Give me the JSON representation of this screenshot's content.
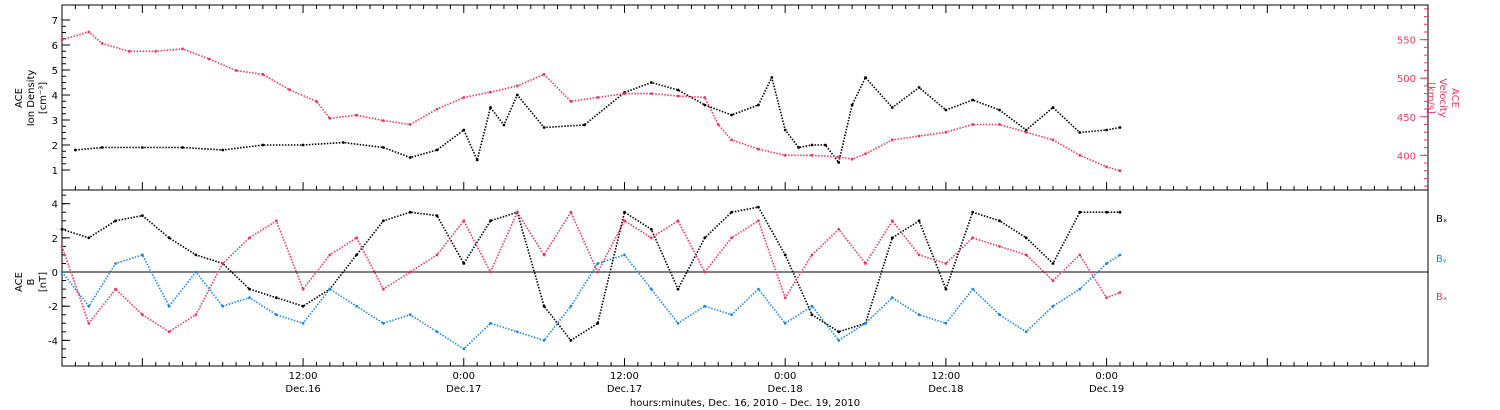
{
  "colors": {
    "black": "#000000",
    "red": "#e8375f",
    "blue": "#1f86e0"
  },
  "x_axis": {
    "label": "hours:minutes, Dec. 16, 2010 – Dec. 19, 2010",
    "range_hours": [
      -6,
      96
    ],
    "ticks": [
      {
        "hour": 12,
        "time": "12:00",
        "day": "Dec.16"
      },
      {
        "hour": 24,
        "time": "0:00",
        "day": "Dec.17"
      },
      {
        "hour": 36,
        "time": "12:00",
        "day": "Dec.17"
      },
      {
        "hour": 48,
        "time": "0:00",
        "day": "Dec.18"
      },
      {
        "hour": 60,
        "time": "12:00",
        "day": "Dec.18"
      },
      {
        "hour": 72,
        "time": "0:00",
        "day": "Dec.19"
      }
    ]
  },
  "chart_data": [
    {
      "type": "scatter",
      "panel": "top",
      "ylabel": [
        "ACE",
        "Ion Density",
        "[cm⁻³]"
      ],
      "ylim": [
        0.2,
        7.6
      ],
      "yticks": [
        1,
        2,
        3,
        4,
        5,
        6,
        7
      ],
      "ylabel_right": [
        "ACE",
        "Velocity",
        "[km/s]"
      ],
      "ylim_right": [
        355,
        595
      ],
      "yticks_right": [
        400,
        450,
        500,
        550
      ],
      "series": [
        {
          "axis": "left",
          "color": "#000000",
          "x": [
            -5,
            -3,
            0,
            3,
            6,
            9,
            12,
            15,
            18,
            20,
            22,
            24,
            25,
            26,
            27,
            28,
            30,
            33,
            36,
            38,
            40,
            42,
            44,
            46,
            47,
            48,
            49,
            50,
            51,
            52,
            53,
            54,
            56,
            58,
            60,
            62,
            64,
            66,
            68,
            70,
            72,
            73
          ],
          "y": [
            1.8,
            1.9,
            1.9,
            1.9,
            1.8,
            2.0,
            2.0,
            2.1,
            1.9,
            1.5,
            1.8,
            2.6,
            1.4,
            3.5,
            2.8,
            4.0,
            2.7,
            2.8,
            4.1,
            4.5,
            4.2,
            3.6,
            3.2,
            3.6,
            4.7,
            2.6,
            1.9,
            2.0,
            2.0,
            1.3,
            3.6,
            4.7,
            3.5,
            4.3,
            3.4,
            3.8,
            3.4,
            2.6,
            3.5,
            2.5,
            2.6,
            2.7
          ]
        },
        {
          "axis": "right",
          "color": "#e8375f",
          "x": [
            -6,
            -4,
            -3,
            -1,
            1,
            3,
            5,
            7,
            9,
            11,
            13,
            14,
            16,
            18,
            20,
            22,
            24,
            26,
            28,
            30,
            32,
            34,
            36,
            38,
            40,
            42,
            43,
            44,
            46,
            48,
            50,
            52,
            53,
            54,
            56,
            58,
            60,
            62,
            64,
            66,
            68,
            70,
            72,
            73
          ],
          "y": [
            550,
            560,
            545,
            535,
            535,
            538,
            525,
            510,
            505,
            485,
            470,
            448,
            452,
            445,
            440,
            460,
            475,
            482,
            490,
            505,
            470,
            475,
            480,
            480,
            477,
            475,
            440,
            420,
            408,
            400,
            400,
            398,
            395,
            402,
            420,
            425,
            430,
            440,
            440,
            430,
            420,
            400,
            385,
            380
          ]
        }
      ]
    },
    {
      "type": "scatter",
      "panel": "bottom",
      "ylabel": [
        "ACE",
        "B",
        "[nT]"
      ],
      "ylim": [
        -5.5,
        4.8
      ],
      "yticks": [
        -4,
        -2,
        0,
        2,
        4
      ],
      "series": [
        {
          "name": "Bₓ",
          "color": "#000000",
          "x": [
            -6,
            -4,
            -2,
            0,
            2,
            4,
            6,
            8,
            10,
            12,
            14,
            16,
            18,
            20,
            22,
            24,
            26,
            28,
            30,
            32,
            34,
            36,
            38,
            40,
            42,
            44,
            46,
            48,
            50,
            52,
            54,
            56,
            58,
            60,
            62,
            64,
            66,
            68,
            70,
            72,
            73
          ],
          "y": [
            2.5,
            2.0,
            3.0,
            3.3,
            2.0,
            1.0,
            0.5,
            -1.0,
            -1.5,
            -2.0,
            -1.0,
            1.0,
            3.0,
            3.5,
            3.3,
            0.5,
            3.0,
            3.5,
            -2.0,
            -4.0,
            -3.0,
            3.5,
            2.5,
            -1.0,
            2.0,
            3.5,
            3.8,
            1.0,
            -2.5,
            -3.5,
            -3.0,
            2.0,
            3.0,
            -1.0,
            3.5,
            3.0,
            2.0,
            0.5,
            3.5,
            3.5,
            3.5
          ]
        },
        {
          "name": "Bᵧ",
          "color": "#1f86e0",
          "x": [
            -6,
            -4,
            -2,
            0,
            2,
            4,
            6,
            8,
            10,
            12,
            14,
            16,
            18,
            20,
            22,
            24,
            26,
            28,
            30,
            32,
            34,
            36,
            38,
            40,
            42,
            44,
            46,
            48,
            50,
            52,
            54,
            56,
            58,
            60,
            62,
            64,
            66,
            68,
            70,
            72,
            73
          ],
          "y": [
            0.0,
            -2.0,
            0.5,
            1.0,
            -2.0,
            0.0,
            -2.0,
            -1.5,
            -2.5,
            -3.0,
            -1.0,
            -2.0,
            -3.0,
            -2.5,
            -3.5,
            -4.5,
            -3.0,
            -3.5,
            -4.0,
            -2.0,
            0.5,
            1.0,
            -1.0,
            -3.0,
            -2.0,
            -2.5,
            -1.0,
            -3.0,
            -2.0,
            -4.0,
            -3.0,
            -1.5,
            -2.5,
            -3.0,
            -1.0,
            -2.5,
            -3.5,
            -2.0,
            -1.0,
            0.5,
            1.0
          ]
        },
        {
          "name": "Bₔ",
          "color": "#e8375f",
          "x": [
            -6,
            -4,
            -2,
            0,
            2,
            4,
            6,
            8,
            10,
            12,
            14,
            16,
            18,
            20,
            22,
            24,
            26,
            28,
            30,
            32,
            34,
            36,
            38,
            40,
            42,
            44,
            46,
            48,
            50,
            52,
            54,
            56,
            58,
            60,
            62,
            64,
            66,
            68,
            70,
            72,
            73
          ],
          "y": [
            1.5,
            -3.0,
            -1.0,
            -2.5,
            -3.5,
            -2.5,
            0.5,
            2.0,
            3.0,
            -1.0,
            1.0,
            2.0,
            -1.0,
            0.0,
            1.0,
            3.0,
            0.0,
            3.5,
            1.0,
            3.5,
            0.0,
            3.0,
            2.0,
            3.0,
            0.0,
            2.0,
            3.0,
            -1.5,
            1.0,
            2.5,
            0.5,
            3.0,
            1.0,
            0.5,
            2.0,
            1.5,
            1.0,
            -0.5,
            1.0,
            -1.5,
            -1.2
          ]
        }
      ]
    }
  ]
}
